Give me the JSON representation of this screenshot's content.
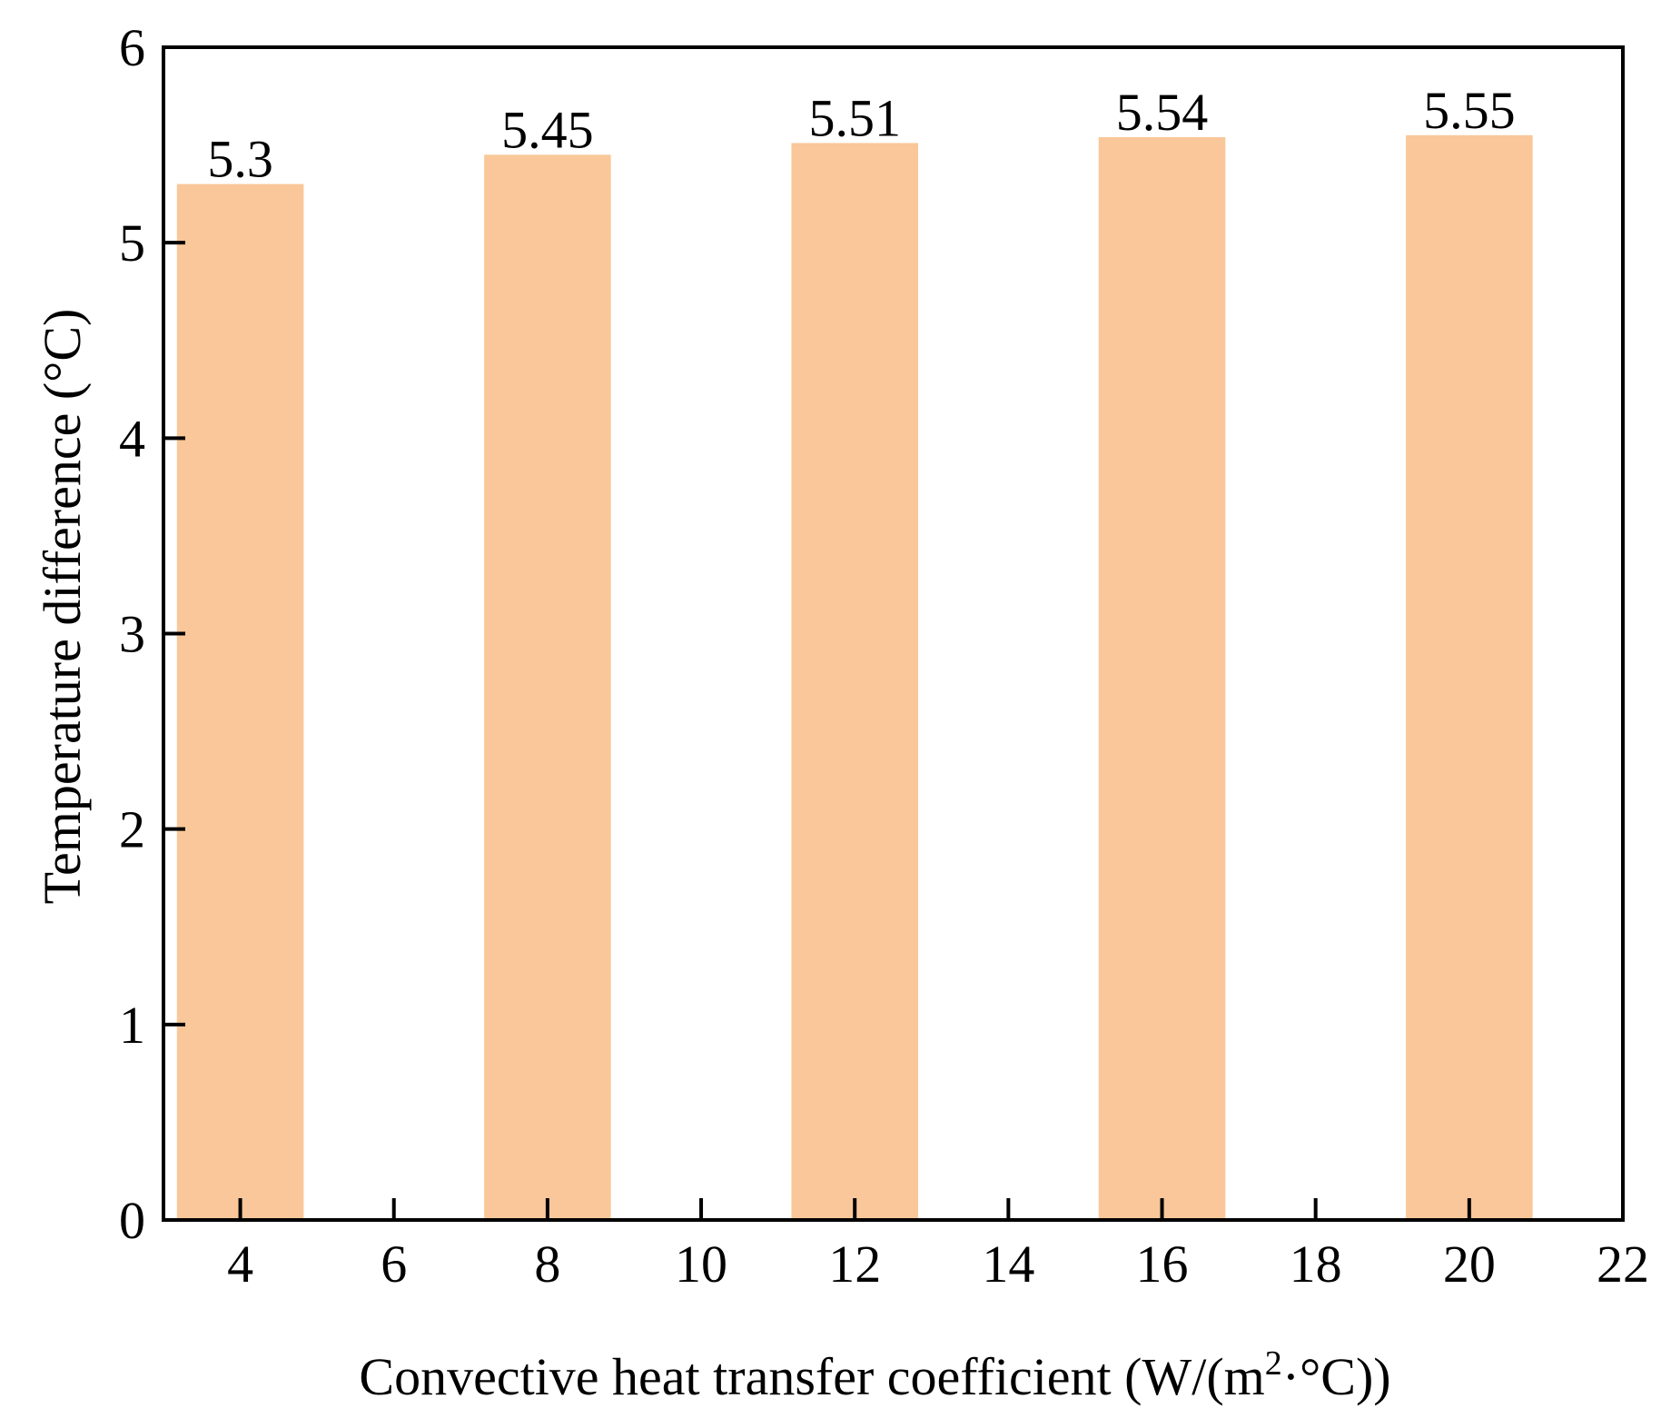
{
  "chart_data": {
    "type": "bar",
    "title": "",
    "xlabel": "Convective heat transfer coefficient (W/(m²·°C))",
    "xlabel_parts": {
      "prefix": "Convective heat transfer coefficient (W/(m",
      "superscript": "2",
      "suffix": "·°C))"
    },
    "ylabel": "Temperature difference  (°C)",
    "x": [
      4,
      8,
      12,
      16,
      20
    ],
    "values": [
      5.3,
      5.45,
      5.51,
      5.54,
      5.55
    ],
    "data_labels": [
      "5.3",
      "5.45",
      "5.51",
      "5.54",
      "5.55"
    ],
    "bar_width": 1.65,
    "xlim": [
      3,
      22
    ],
    "ylim": [
      0,
      6
    ],
    "xticks": [
      4,
      6,
      8,
      10,
      12,
      14,
      16,
      18,
      20,
      22
    ],
    "yticks": [
      0,
      1,
      2,
      3,
      4,
      5,
      6
    ],
    "grid": false,
    "legend": "none",
    "bar_color": "#F9C799",
    "axis_color": "#000000"
  }
}
